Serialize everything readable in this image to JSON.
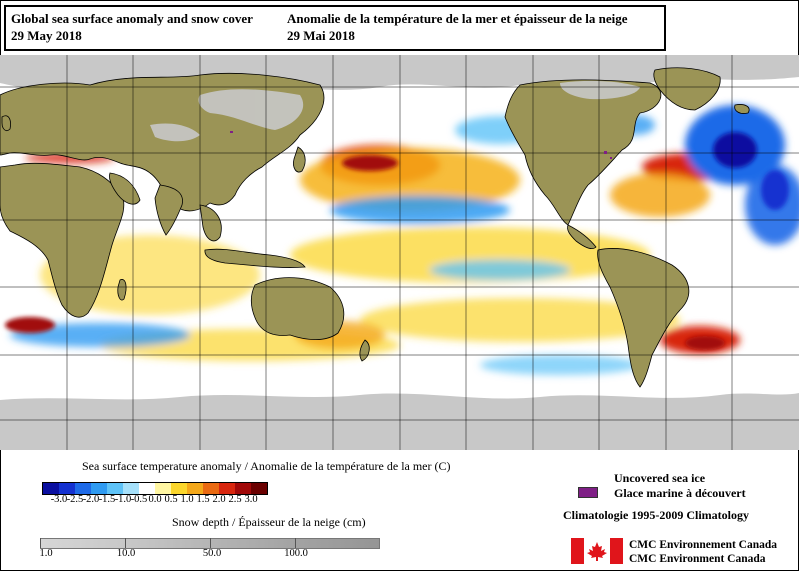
{
  "title": {
    "en_line1": "Global sea surface anomaly and snow cover",
    "en_line2": "29 May 2018",
    "fr_line1": "Anomalie de la température de la mer et épaisseur de la neige",
    "fr_line2": "29 Mai 2018"
  },
  "map": {
    "land_color": "#9b9456",
    "snow_color": "#c8c8c8",
    "ocean_color": "#ffffff",
    "border_color": "#000000"
  },
  "sst_legend": {
    "title": "Sea surface temperature anomaly / Anomalie de la température de la mer (C)",
    "ticks": [
      "-3.0",
      "-2.5",
      "-2.0",
      "-1.5",
      "-1.0",
      "-0.5",
      "0.0",
      "0.5",
      "1.0",
      "1.5",
      "2.0",
      "2.5",
      "3.0"
    ],
    "colors": [
      "#0a0fa0",
      "#1431d0",
      "#1e6ae8",
      "#2f9bf2",
      "#5ec3f8",
      "#a6e1fb",
      "#ffffff",
      "#fff6a2",
      "#fbd62c",
      "#f4a81a",
      "#ea6a12",
      "#d8260e",
      "#a10808",
      "#6a0000"
    ]
  },
  "snow_legend": {
    "title": "Snow depth / Épaisseur de la neige (cm)",
    "ticks": [
      "1.0",
      "10.0",
      "50.0",
      "100.0"
    ]
  },
  "ice_legend": {
    "line1": "Uncovered sea ice",
    "line2": "Glace marine à découvert",
    "color": "#7f1f86"
  },
  "climatology": "Climatologie 1995-2009 Climatology",
  "credit": {
    "line1": "CMC Environnement Canada",
    "line2": "CMC Environment Canada"
  }
}
